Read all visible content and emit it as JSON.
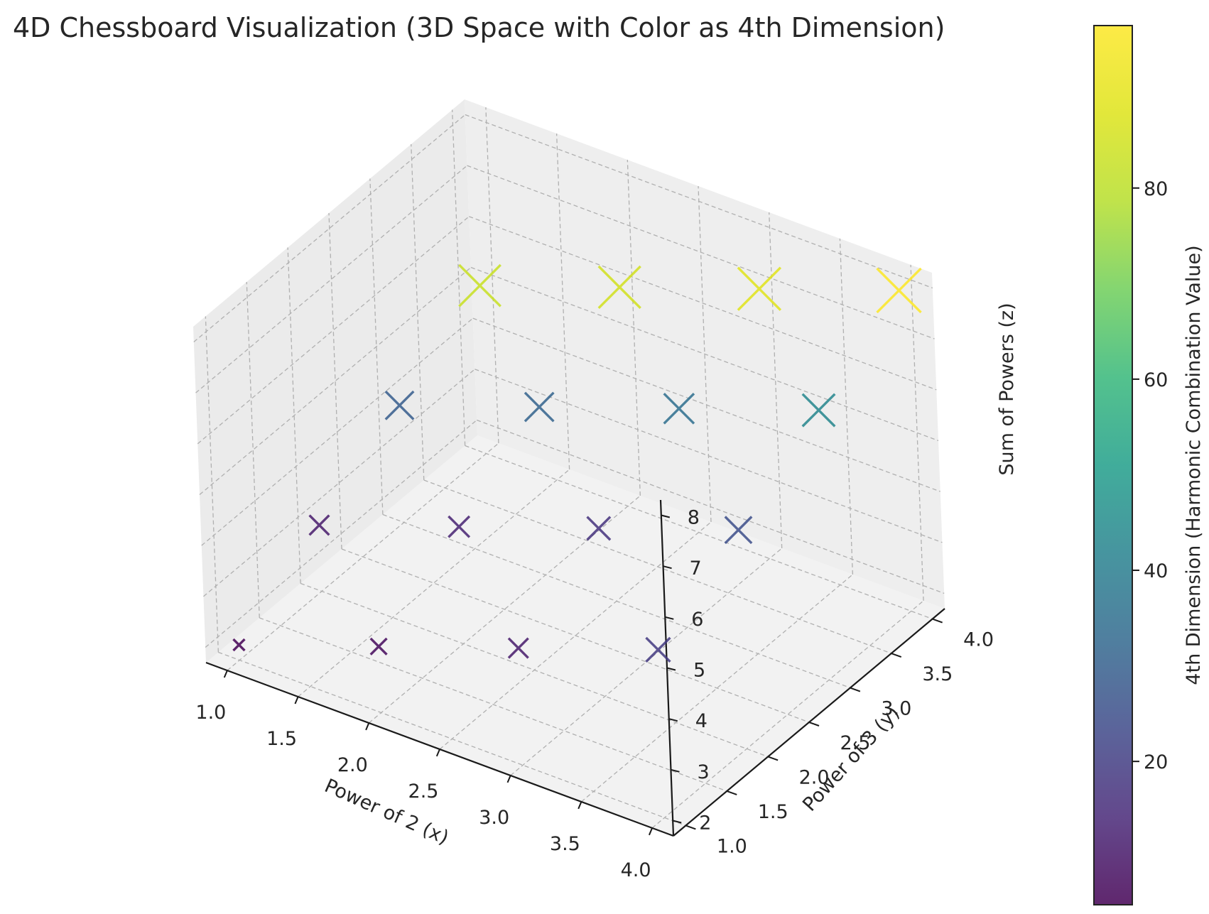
{
  "chart_data": {
    "type": "scatter",
    "title": "4D Chessboard Visualization (3D Space with Color as 4th Dimension)",
    "xlabel": "Power of 2 (x)",
    "ylabel": "Power of 3 (y)",
    "zlabel": "Sum of Powers (z)",
    "colorbar_label": "4th Dimension (Harmonic Combination Value)",
    "x_ticks": [
      "1.0",
      "1.5",
      "2.0",
      "2.5",
      "3.0",
      "3.5",
      "4.0"
    ],
    "y_ticks": [
      "1.0",
      "1.5",
      "2.0",
      "2.5",
      "3.0",
      "3.5",
      "4.0"
    ],
    "z_ticks": [
      "2",
      "3",
      "4",
      "5",
      "6",
      "7",
      "8"
    ],
    "colorbar_ticks": [
      "20",
      "40",
      "60",
      "80"
    ],
    "xlim": [
      0.85,
      4.15
    ],
    "ylim": [
      0.85,
      4.15
    ],
    "zlim": [
      1.7,
      8.3
    ],
    "clim": [
      5,
      97
    ],
    "colormap": "viridis",
    "marker": "x",
    "grid": true,
    "points": [
      {
        "x": 1,
        "y": 1,
        "z": 2,
        "value": 5
      },
      {
        "x": 2,
        "y": 1,
        "z": 3,
        "value": 7
      },
      {
        "x": 3,
        "y": 1,
        "z": 4,
        "value": 11
      },
      {
        "x": 4,
        "y": 1,
        "z": 5,
        "value": 19
      },
      {
        "x": 1,
        "y": 2,
        "z": 3,
        "value": 11
      },
      {
        "x": 2,
        "y": 2,
        "z": 4,
        "value": 13
      },
      {
        "x": 3,
        "y": 2,
        "z": 5,
        "value": 17
      },
      {
        "x": 4,
        "y": 2,
        "z": 6,
        "value": 25
      },
      {
        "x": 1,
        "y": 3,
        "z": 4,
        "value": 29
      },
      {
        "x": 2,
        "y": 3,
        "z": 5,
        "value": 31
      },
      {
        "x": 3,
        "y": 3,
        "z": 6,
        "value": 35
      },
      {
        "x": 4,
        "y": 3,
        "z": 7,
        "value": 43
      },
      {
        "x": 1,
        "y": 4,
        "z": 5,
        "value": 83
      },
      {
        "x": 2,
        "y": 4,
        "z": 6,
        "value": 85
      },
      {
        "x": 3,
        "y": 4,
        "z": 7,
        "value": 89
      },
      {
        "x": 4,
        "y": 4,
        "z": 8,
        "value": 97
      }
    ]
  }
}
